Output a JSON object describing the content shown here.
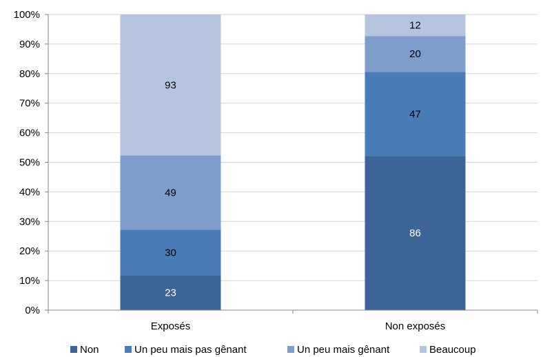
{
  "chart_data": {
    "type": "bar",
    "stacked": "percent",
    "categories": [
      "Exposés",
      "Non exposés"
    ],
    "series": [
      {
        "name": "Non",
        "values": [
          23,
          86
        ],
        "color": "#3C6496",
        "label_color": "#ffffff"
      },
      {
        "name": "Un peu mais pas gênant",
        "values": [
          30,
          47
        ],
        "color": "#4A7DB7",
        "label_color": "#000000"
      },
      {
        "name": "Un peu mais gênant",
        "values": [
          49,
          20
        ],
        "color": "#7D9DCA",
        "label_color": "#000000"
      },
      {
        "name": "Beaucoup",
        "values": [
          93,
          12
        ],
        "color": "#B5C5DF",
        "label_color": "#000000"
      }
    ],
    "y_ticks": [
      "0%",
      "10%",
      "20%",
      "30%",
      "40%",
      "50%",
      "60%",
      "70%",
      "80%",
      "90%",
      "100%"
    ],
    "ylim": [
      0,
      100
    ],
    "grid": true,
    "legend_position": "bottom",
    "title": "",
    "xlabel": "",
    "ylabel": ""
  }
}
